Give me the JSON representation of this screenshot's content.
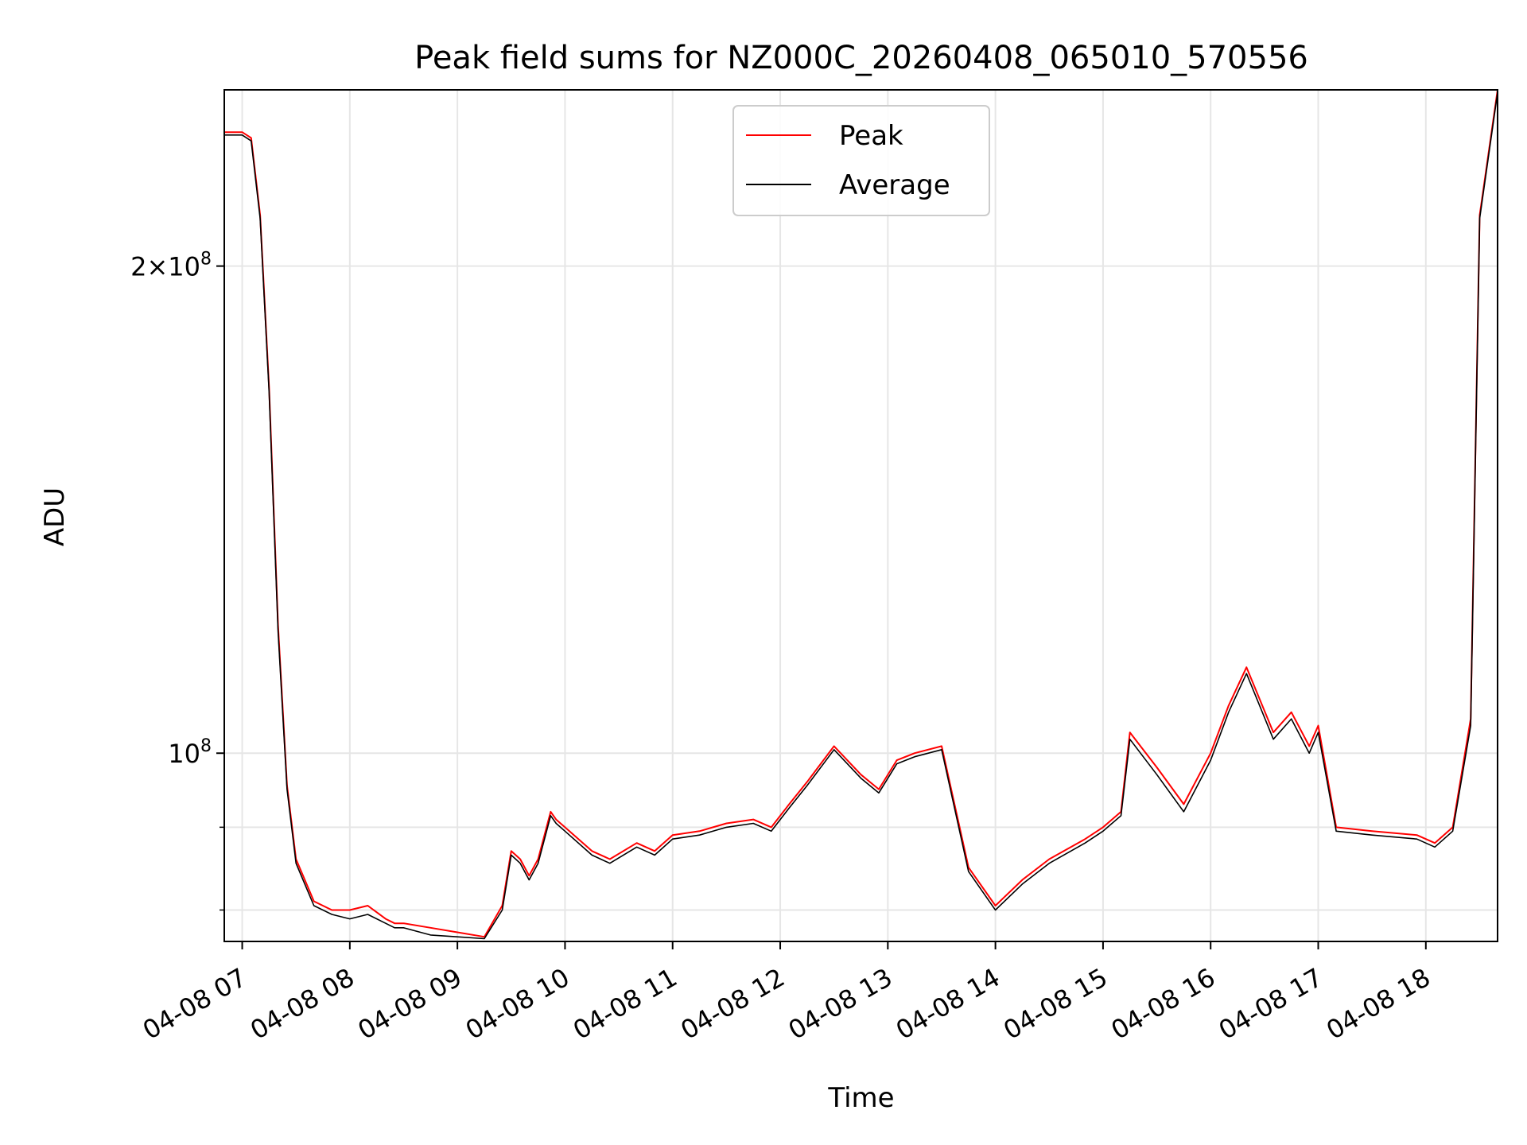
{
  "chart_data": {
    "type": "line",
    "title": "Peak field sums for NZ000C_20260408_065010_570556",
    "xlabel": "Time",
    "ylabel": "ADU",
    "y_scale": "log",
    "xlim": [
      "04-08 06:50",
      "04-08 18:40"
    ],
    "ylim": [
      76500000,
      257000000
    ],
    "x_ticks": [
      "04-08 07",
      "04-08 08",
      "04-08 09",
      "04-08 10",
      "04-08 11",
      "04-08 12",
      "04-08 13",
      "04-08 14",
      "04-08 15",
      "04-08 16",
      "04-08 17",
      "04-08 18"
    ],
    "y_tick_labels": [
      {
        "value": 200000000,
        "mantissa": "2",
        "times": "×",
        "base": "10",
        "exp": "8"
      },
      {
        "value": 100000000,
        "mantissa": "",
        "times": "",
        "base": "10",
        "exp": "8"
      }
    ],
    "y_minor_ticks": [
      80000000,
      90000000
    ],
    "grid": true,
    "legend_position": "upper center",
    "series": [
      {
        "name": "Peak",
        "color": "#ff0000",
        "x": [
          "04-08 06:50",
          "04-08 07:00",
          "04-08 07:05",
          "04-08 07:10",
          "04-08 07:15",
          "04-08 07:20",
          "04-08 07:25",
          "04-08 07:30",
          "04-08 07:40",
          "04-08 07:50",
          "04-08 08:00",
          "04-08 08:10",
          "04-08 08:20",
          "04-08 08:25",
          "04-08 08:30",
          "04-08 08:45",
          "04-08 09:00",
          "04-08 09:15",
          "04-08 09:25",
          "04-08 09:30",
          "04-08 09:35",
          "04-08 09:40",
          "04-08 09:45",
          "04-08 09:52",
          "04-08 09:55",
          "04-08 10:00",
          "04-08 10:15",
          "04-08 10:25",
          "04-08 10:40",
          "04-08 10:50",
          "04-08 11:00",
          "04-08 11:15",
          "04-08 11:30",
          "04-08 11:45",
          "04-08 11:55",
          "04-08 12:05",
          "04-08 12:15",
          "04-08 12:30",
          "04-08 12:45",
          "04-08 12:55",
          "04-08 13:05",
          "04-08 13:15",
          "04-08 13:30",
          "04-08 13:45",
          "04-08 14:00",
          "04-08 14:15",
          "04-08 14:30",
          "04-08 14:50",
          "04-08 15:00",
          "04-08 15:10",
          "04-08 15:15",
          "04-08 15:30",
          "04-08 15:45",
          "04-08 16:00",
          "04-08 16:10",
          "04-08 16:20",
          "04-08 16:35",
          "04-08 16:45",
          "04-08 16:55",
          "04-08 17:00",
          "04-08 17:10",
          "04-08 17:30",
          "04-08 17:55",
          "04-08 18:05",
          "04-08 18:15",
          "04-08 18:25",
          "04-08 18:30",
          "04-08 18:40"
        ],
        "values": [
          242000000,
          242000000,
          240000000,
          215000000,
          168000000,
          120000000,
          95500000,
          86000000,
          81000000,
          80000000,
          80000000,
          80500000,
          79000000,
          78500000,
          78500000,
          78000000,
          77500000,
          77000000,
          80500000,
          87000000,
          86000000,
          84000000,
          86000000,
          92000000,
          91000000,
          90000000,
          87000000,
          86000000,
          88000000,
          87000000,
          89000000,
          89500000,
          90500000,
          91000000,
          90000000,
          93000000,
          96000000,
          101000000,
          97000000,
          95000000,
          99000000,
          100000000,
          101000000,
          85000000,
          80500000,
          83500000,
          86000000,
          88500000,
          90000000,
          92000000,
          103000000,
          98000000,
          93000000,
          100000000,
          107000000,
          113000000,
          103000000,
          106000000,
          101000000,
          104000000,
          90000000,
          89500000,
          89000000,
          88000000,
          90000000,
          105000000,
          215000000,
          257000000
        ]
      },
      {
        "name": "Average",
        "color": "#000000",
        "x": [
          "04-08 06:50",
          "04-08 07:00",
          "04-08 07:05",
          "04-08 07:10",
          "04-08 07:15",
          "04-08 07:20",
          "04-08 07:25",
          "04-08 07:30",
          "04-08 07:40",
          "04-08 07:50",
          "04-08 08:00",
          "04-08 08:10",
          "04-08 08:20",
          "04-08 08:25",
          "04-08 08:30",
          "04-08 08:45",
          "04-08 09:00",
          "04-08 09:15",
          "04-08 09:25",
          "04-08 09:30",
          "04-08 09:35",
          "04-08 09:40",
          "04-08 09:45",
          "04-08 09:52",
          "04-08 09:55",
          "04-08 10:00",
          "04-08 10:15",
          "04-08 10:25",
          "04-08 10:40",
          "04-08 10:50",
          "04-08 11:00",
          "04-08 11:15",
          "04-08 11:30",
          "04-08 11:45",
          "04-08 11:55",
          "04-08 12:05",
          "04-08 12:15",
          "04-08 12:30",
          "04-08 12:45",
          "04-08 12:55",
          "04-08 13:05",
          "04-08 13:15",
          "04-08 13:30",
          "04-08 13:45",
          "04-08 14:00",
          "04-08 14:15",
          "04-08 14:30",
          "04-08 14:50",
          "04-08 15:00",
          "04-08 15:10",
          "04-08 15:15",
          "04-08 15:30",
          "04-08 15:45",
          "04-08 16:00",
          "04-08 16:10",
          "04-08 16:20",
          "04-08 16:35",
          "04-08 16:45",
          "04-08 16:55",
          "04-08 17:00",
          "04-08 17:10",
          "04-08 17:30",
          "04-08 17:55",
          "04-08 18:05",
          "04-08 18:15",
          "04-08 18:25",
          "04-08 18:30",
          "04-08 18:40"
        ],
        "values": [
          241000000,
          241000000,
          239000000,
          214000000,
          167000000,
          119000000,
          95000000,
          85500000,
          80500000,
          79500000,
          79000000,
          79500000,
          78500000,
          78000000,
          78000000,
          77200000,
          77000000,
          76800000,
          80000000,
          86500000,
          85500000,
          83500000,
          85500000,
          91500000,
          90500000,
          89500000,
          86500000,
          85500000,
          87500000,
          86500000,
          88500000,
          89000000,
          90000000,
          90500000,
          89500000,
          92500000,
          95500000,
          100500000,
          96500000,
          94500000,
          98500000,
          99500000,
          100500000,
          84500000,
          80000000,
          83000000,
          85500000,
          88000000,
          89500000,
          91500000,
          102000000,
          97000000,
          92000000,
          99000000,
          106000000,
          112000000,
          102000000,
          105000000,
          100000000,
          103000000,
          89500000,
          89000000,
          88500000,
          87500000,
          89500000,
          104000000,
          214000000,
          256000000
        ]
      }
    ]
  }
}
